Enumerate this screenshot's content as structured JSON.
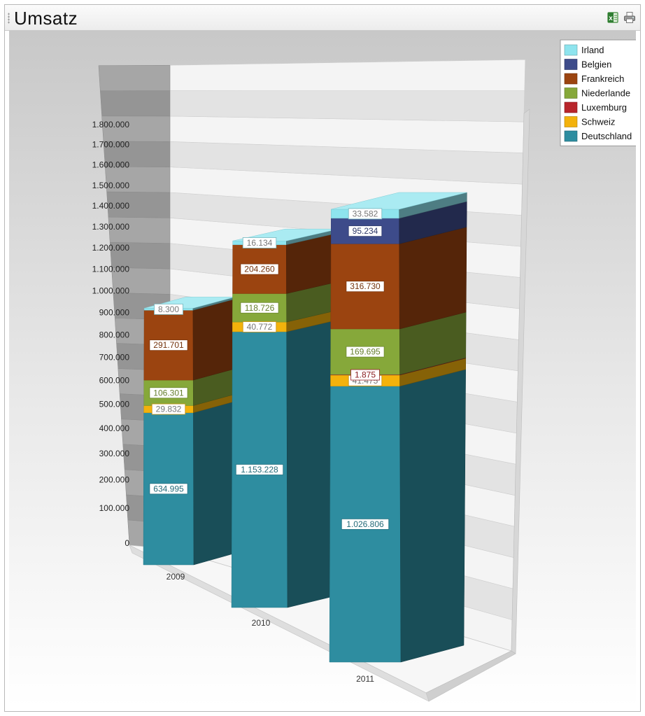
{
  "window": {
    "title": "Umsatz",
    "tools": {
      "excel": "excel-export-icon",
      "print": "printer-icon"
    }
  },
  "chart_data": {
    "type": "bar",
    "stacked": true,
    "three_d": true,
    "categories": [
      "2009",
      "2010",
      "2011"
    ],
    "series": [
      {
        "name": "Deutschland",
        "color": "#2e8da0",
        "values": [
          634995,
          1153228,
          1026806
        ],
        "labels": [
          "634.995",
          "1.153.228",
          "1.026.806"
        ]
      },
      {
        "name": "Schweiz",
        "color": "#f3b20c",
        "values": [
          29832,
          40772,
          41475
        ],
        "labels": [
          "29.832",
          "40.772",
          "41.475"
        ]
      },
      {
        "name": "Luxemburg",
        "color": "#b8252b",
        "values": [
          0,
          0,
          1875
        ],
        "labels": [
          "",
          "",
          "1.875"
        ]
      },
      {
        "name": "Niederlande",
        "color": "#86a83a",
        "values": [
          106301,
          118726,
          169695
        ],
        "labels": [
          "106.301",
          "118.726",
          "169.695"
        ]
      },
      {
        "name": "Frankreich",
        "color": "#9b4410",
        "values": [
          291701,
          204260,
          316730
        ],
        "labels": [
          "291.701",
          "204.260",
          "316.730"
        ]
      },
      {
        "name": "Belgien",
        "color": "#3d4b8a",
        "values": [
          0,
          0,
          95234
        ],
        "labels": [
          "",
          "",
          "95.234"
        ]
      },
      {
        "name": "Irland",
        "color": "#8ee4ee",
        "values": [
          8300,
          16134,
          33582
        ],
        "labels": [
          "8.300",
          "16.134",
          "33.582"
        ]
      }
    ],
    "legend_order": [
      "Irland",
      "Belgien",
      "Frankreich",
      "Niederlande",
      "Luxemburg",
      "Schweiz",
      "Deutschland"
    ],
    "legend_position": "top-right",
    "yticks": [
      "0",
      "100.000",
      "200.000",
      "300.000",
      "400.000",
      "500.000",
      "600.000",
      "700.000",
      "800.000",
      "900.000",
      "1.000.000",
      "1.100.000",
      "1.200.000",
      "1.300.000",
      "1.400.000",
      "1.500.000",
      "1.600.000",
      "1.700.000",
      "1.800.000"
    ],
    "ylim": [
      0,
      1800000
    ],
    "grid": true
  }
}
